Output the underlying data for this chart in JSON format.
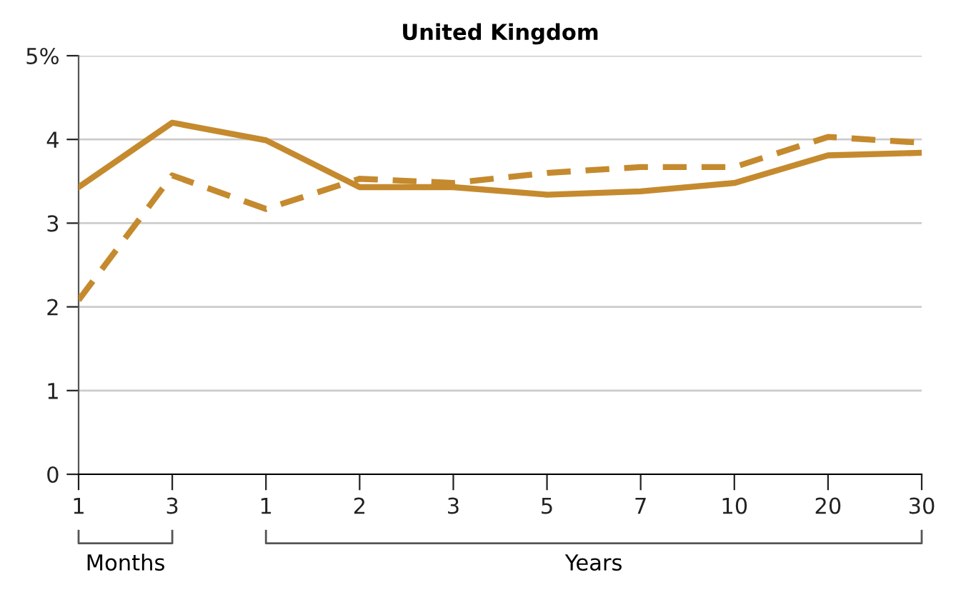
{
  "chart_data": {
    "type": "line",
    "title": "United Kingdom",
    "categories": [
      "1",
      "3",
      "1",
      "2",
      "3",
      "5",
      "7",
      "10",
      "20",
      "30"
    ],
    "series": [
      {
        "color": "#c58a2e",
        "line_style": "solid",
        "values": [
          3.43,
          4.2,
          3.99,
          3.43,
          3.43,
          3.34,
          3.38,
          3.48,
          3.81,
          3.84
        ]
      },
      {
        "color": "#c58a2e",
        "line_style": "dashed",
        "values": [
          2.08,
          3.57,
          3.17,
          3.53,
          3.48,
          3.6,
          3.67,
          3.67,
          4.03,
          3.96
        ]
      }
    ],
    "ylim": [
      0,
      5
    ],
    "yticks": [
      0,
      1,
      2,
      3,
      4,
      {
        "value": 5,
        "label": "5%"
      }
    ],
    "grid": "y",
    "marker": "none",
    "annotations": [
      "Months",
      "Years"
    ]
  }
}
